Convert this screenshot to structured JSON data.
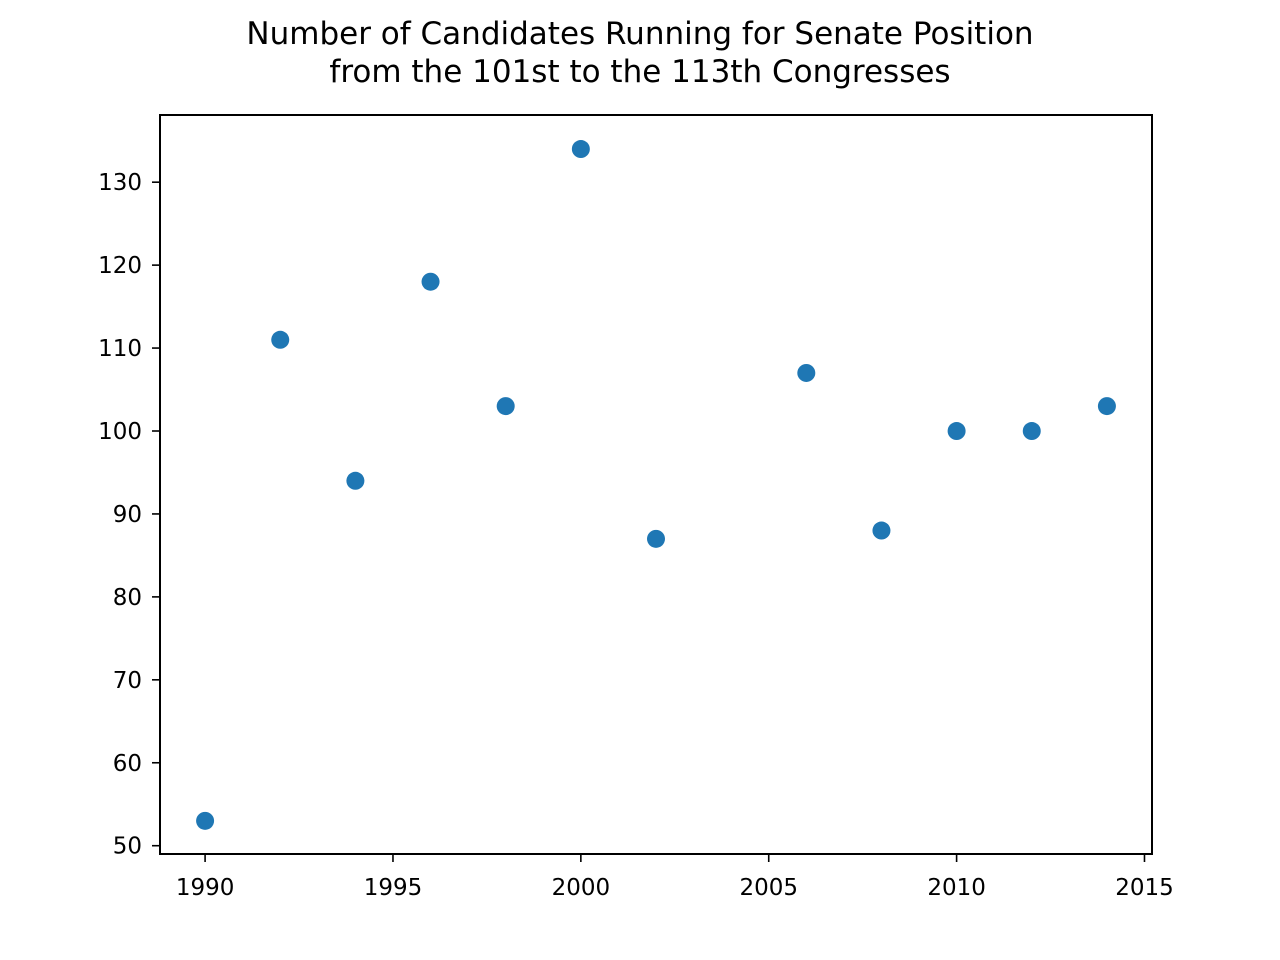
{
  "chart_data": {
    "type": "scatter",
    "title": "Number of Candidates Running for Senate Position",
    "subtitle": "from the 101st to the 113th Congresses",
    "xlabel": "",
    "ylabel": "",
    "x": [
      1990,
      1992,
      1994,
      1996,
      1998,
      2000,
      2002,
      2006,
      2008,
      2010,
      2012,
      2014
    ],
    "y": [
      53,
      111,
      94,
      118,
      103,
      134,
      87,
      107,
      88,
      100,
      100,
      103
    ],
    "xlim": [
      1988.8,
      2015.2
    ],
    "ylim": [
      49.0,
      138.1
    ],
    "xticks": [
      1990,
      1995,
      2000,
      2005,
      2010,
      2015
    ],
    "yticks": [
      50,
      60,
      70,
      80,
      90,
      100,
      110,
      120,
      130
    ],
    "marker_color": "#1f77b4",
    "grid": false,
    "legend": "none"
  }
}
